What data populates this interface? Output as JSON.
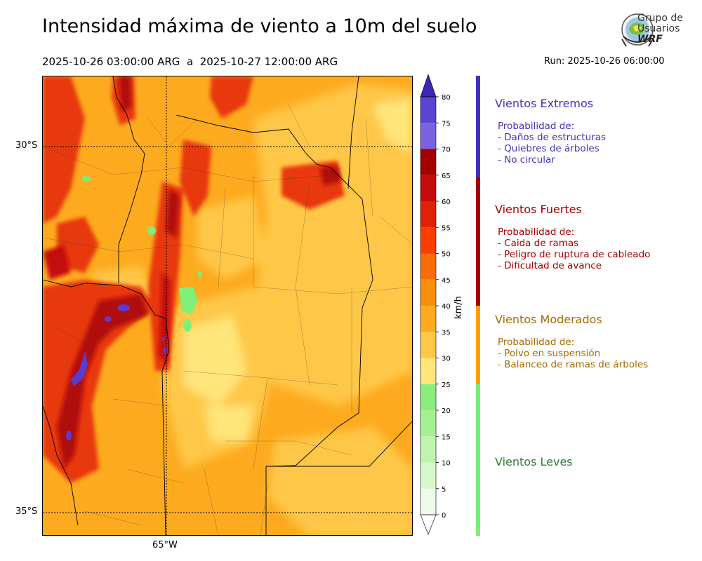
{
  "header": {
    "title": "Intensidad máxima de viento a 10m del suelo",
    "period_start": "2025-10-26 03:00:00 ARG",
    "period_sep": "a",
    "period_end": "2025-10-27 12:00:00 ARG",
    "run": "Run: 2025-10-26 06:00:00"
  },
  "logo": {
    "line1": "Grupo de",
    "line2": "Usuarios",
    "line3": "WRF",
    "icon": "globe-satellite-logo-icon"
  },
  "map": {
    "lat_labels": [
      "30°S",
      "35°S"
    ],
    "lon_labels": [
      "65°W"
    ],
    "colors": {
      "moderate_base": "#fdaa1e",
      "moderate_light": "#ffc747",
      "light_yellow": "#ffe57a",
      "orange_mid": "#f98f0a",
      "strong": "#e8380f",
      "strong_dark": "#b00a0a",
      "extreme": "#5a3ccf",
      "calm_green": "#7ef07a"
    }
  },
  "colorbar": {
    "unit": "km/h",
    "ticks": [
      "0",
      "5",
      "10",
      "15",
      "20",
      "25",
      "30",
      "35",
      "40",
      "45",
      "50",
      "55",
      "60",
      "65",
      "70",
      "75",
      "80"
    ],
    "colors": [
      "#eefbe9",
      "#d7f7cc",
      "#bff4b0",
      "#a6f094",
      "#8ced7f",
      "#72e86a",
      "#ffe57a",
      "#ffc747",
      "#fdaa1e",
      "#f98f0a",
      "#fb6c07",
      "#ff3c00",
      "#e2200a",
      "#c40a0a",
      "#a30000",
      "#7b62e0",
      "#5a44d4",
      "#4a32c7"
    ],
    "extend_color": "#3a26b8"
  },
  "categories": [
    {
      "title": "Vientos Extremos",
      "color": "#3f33ba",
      "lines": [
        "Probabilidad de:",
        "- Daños de estructuras",
        "- Quiebres de árboles",
        "- No circular"
      ]
    },
    {
      "title": "Vientos Fuertes",
      "color": "#a30000",
      "lines": [
        "Probabilidad de:",
        "- Caida de ramas",
        "- Peligro de ruptura de cableado",
        "- Dificultad de avance"
      ]
    },
    {
      "title": "Vientos Moderados",
      "color": "#a86a00",
      "bar_color": "#fd9e00",
      "lines": [
        "Probabilidad de:",
        "- Polvo en suspensión",
        "- Balanceo de ramas de árboles"
      ]
    },
    {
      "title": "Vientos Leves",
      "color": "#2e7d32",
      "bar_color": "#77f075",
      "lines": []
    }
  ]
}
